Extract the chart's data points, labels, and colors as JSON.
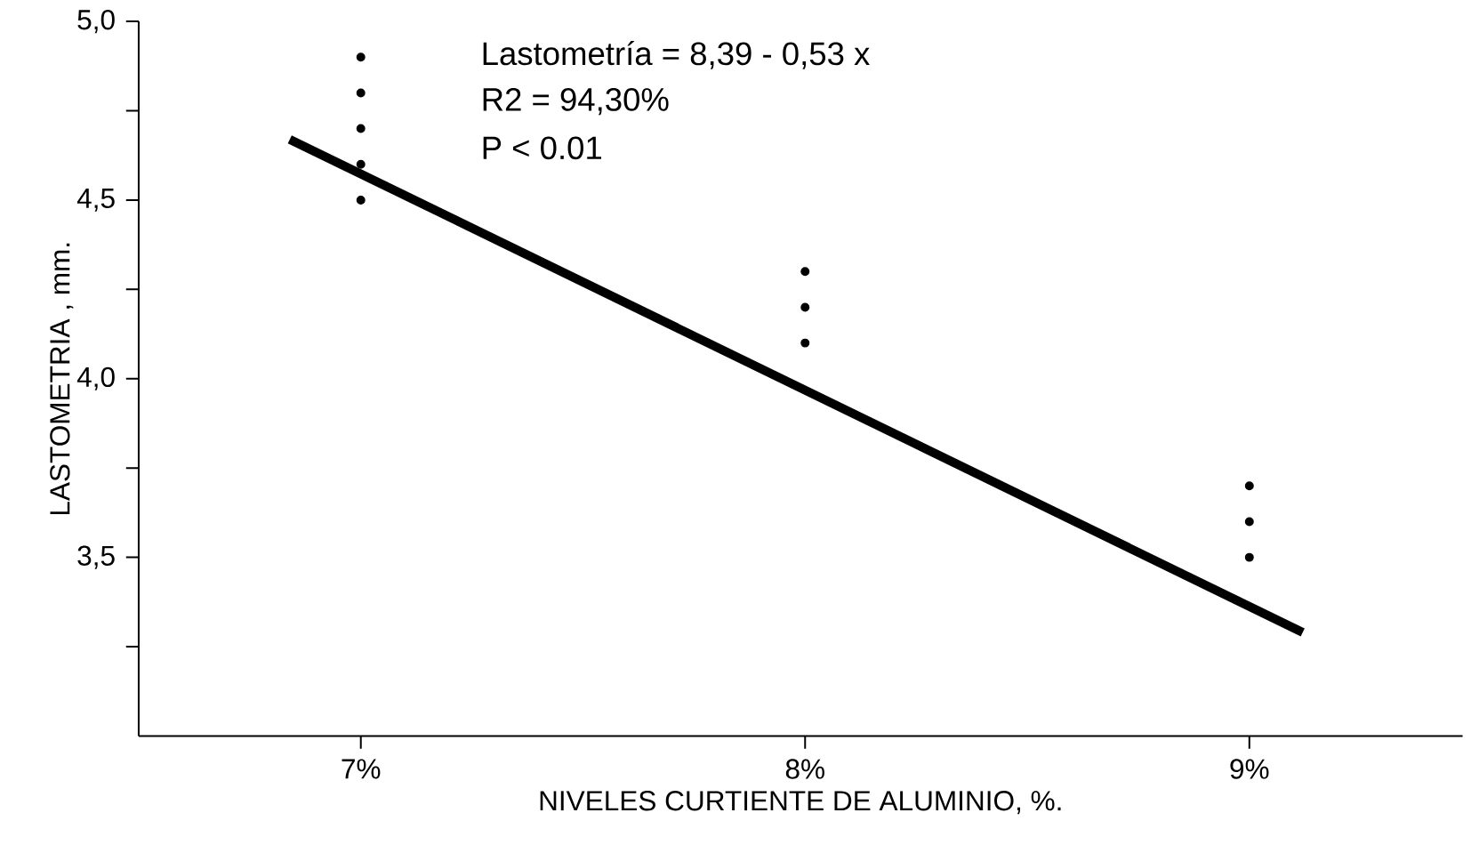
{
  "chart_data": {
    "type": "scatter",
    "xlabel": "NIVELES  CURTIENTE  DE ALUMINIO, %.",
    "ylabel": "LASTOMETRIA ,  mm.",
    "annotations": [
      "Lastometría = 8,39 - 0,53 x",
      "R2 = 94,30%",
      "P < 0.01"
    ],
    "xlim": [
      6.5,
      9.48
    ],
    "ylim": [
      3.0,
      5.0
    ],
    "marker": "circle",
    "xticks": [
      {
        "value": 7,
        "label": "7%"
      },
      {
        "value": 8,
        "label": "8%"
      },
      {
        "value": 9,
        "label": "9%"
      }
    ],
    "yticks": [
      {
        "value": 3.25,
        "label": null
      },
      {
        "value": 3.5,
        "label": "3,5"
      },
      {
        "value": 3.75,
        "label": null
      },
      {
        "value": 4.0,
        "label": "4,0"
      },
      {
        "value": 4.25,
        "label": null
      },
      {
        "value": 4.5,
        "label": "4,5"
      },
      {
        "value": 4.75,
        "label": null
      },
      {
        "value": 5.0,
        "label": "5,0"
      }
    ],
    "series": [
      {
        "color": "#000000",
        "x": [
          7,
          7,
          7,
          7,
          7,
          8,
          8,
          8,
          9,
          9,
          9
        ],
        "values": [
          4.9,
          4.8,
          4.7,
          4.6,
          4.5,
          4.3,
          4.2,
          4.1,
          3.7,
          3.6,
          3.5
        ]
      },
      {
        "type": "line",
        "marker": "none",
        "color": "#000000",
        "x": [
          6.84,
          9.12
        ],
        "values": [
          4.67,
          3.29
        ]
      }
    ]
  }
}
